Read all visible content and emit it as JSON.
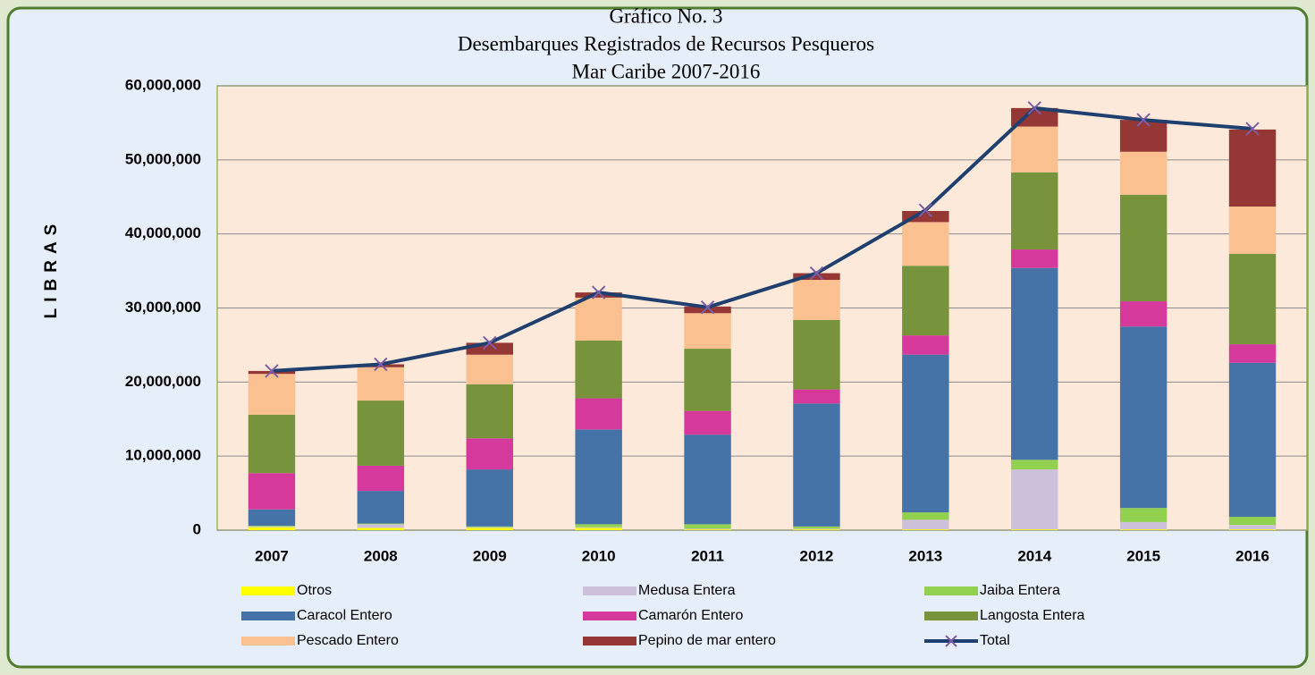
{
  "chart_data": {
    "type": "bar",
    "stacked": true,
    "title": [
      "Gráfico No. 3",
      "Desembarques Registrados de Recursos Pesqueros",
      "Mar Caribe  2007-2016"
    ],
    "y_label": "LIBRAS",
    "categories": [
      "2007",
      "2008",
      "2009",
      "2010",
      "2011",
      "2012",
      "2013",
      "2014",
      "2015",
      "2016"
    ],
    "ylim": [
      0,
      60000000
    ],
    "yticks": [
      0,
      {
        "value": 10000000,
        "label": "10,000,000"
      },
      {
        "value": 20000000,
        "label": "20,000,000"
      },
      {
        "value": 30000000,
        "label": "30,000,000"
      },
      {
        "value": 40000000,
        "label": "40,000,000"
      },
      {
        "value": 50000000,
        "label": "50,000,000"
      },
      {
        "value": 60000000,
        "label": "60,000,000"
      }
    ],
    "grid": true,
    "legend": "bottom",
    "series": [
      {
        "name": "Otros",
        "color": "#ffff00",
        "values": [
          400000,
          300000,
          300000,
          300000,
          100000,
          100000,
          100000,
          100000,
          100000,
          100000
        ]
      },
      {
        "name": "Medusa Entera",
        "color": "#ccc0da",
        "values": [
          100000,
          500000,
          100000,
          100000,
          100000,
          100000,
          1300000,
          8100000,
          1000000,
          600000
        ]
      },
      {
        "name": "Jaiba Entera",
        "color": "#92d050",
        "values": [
          100000,
          100000,
          100000,
          400000,
          600000,
          300000,
          1000000,
          1300000,
          1900000,
          1100000
        ]
      },
      {
        "name": "Caracol Entero",
        "color": "#4572a7",
        "values": [
          2200000,
          4400000,
          7700000,
          12800000,
          12100000,
          16600000,
          21300000,
          25900000,
          24500000,
          20800000
        ]
      },
      {
        "name": "Camarón Entero",
        "color": "#d6399c",
        "values": [
          4900000,
          3400000,
          4200000,
          4200000,
          3200000,
          1900000,
          2600000,
          2500000,
          3400000,
          2500000
        ]
      },
      {
        "name": "Langosta Entera",
        "color": "#77933c",
        "values": [
          7900000,
          8800000,
          7300000,
          7800000,
          8400000,
          9400000,
          9400000,
          10400000,
          14400000,
          12200000
        ]
      },
      {
        "name": "Pescado Entero",
        "color": "#fac090",
        "values": [
          5500000,
          4500000,
          4000000,
          5800000,
          4800000,
          5400000,
          5900000,
          6200000,
          5800000,
          6400000
        ]
      },
      {
        "name": "Pepino de mar entero",
        "color": "#953735",
        "values": [
          400000,
          400000,
          1600000,
          700000,
          900000,
          900000,
          1500000,
          2500000,
          4300000,
          10400000
        ]
      },
      {
        "name": "Total",
        "type": "line",
        "color": "#1f3f6e",
        "marker_color": "#7b5ea7",
        "values": [
          21500000,
          22400000,
          25300000,
          32100000,
          30100000,
          34700000,
          43200000,
          57000000,
          55400000,
          54200000
        ]
      }
    ]
  }
}
